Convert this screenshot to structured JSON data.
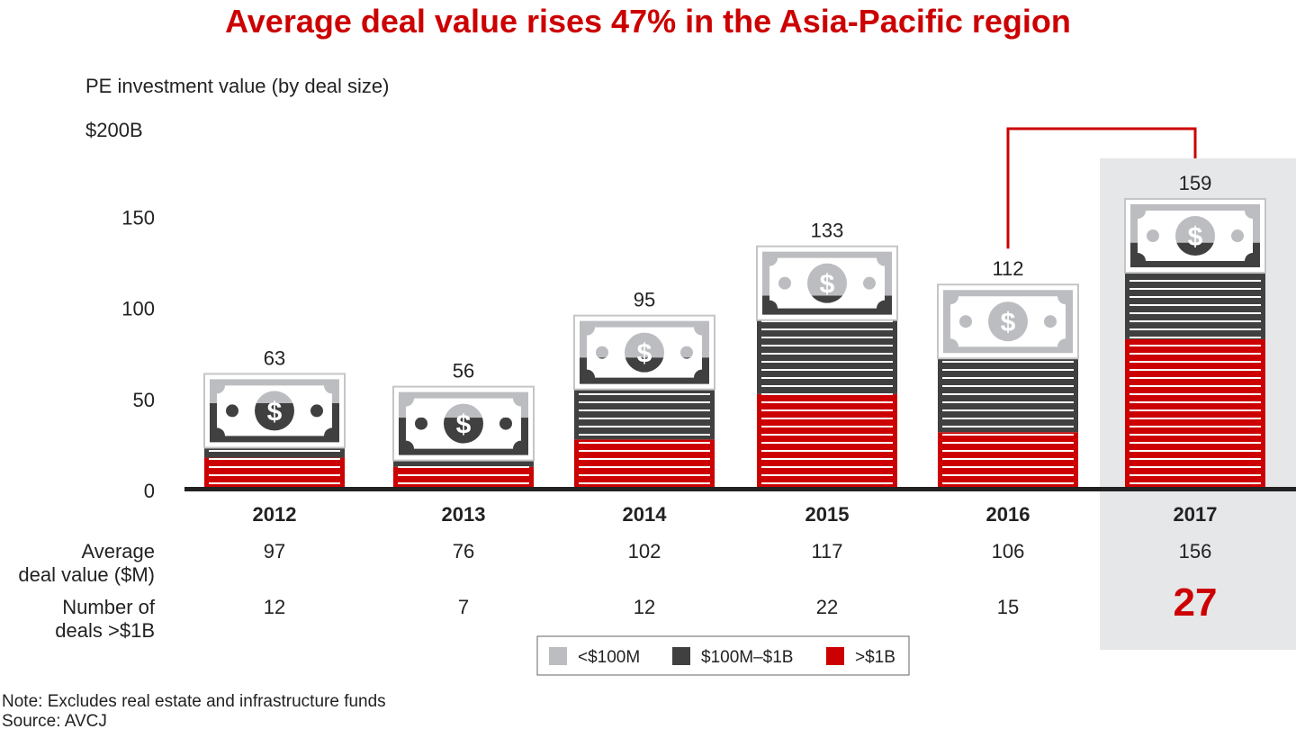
{
  "chart_data": {
    "type": "bar",
    "stacked": true,
    "title": "Average deal value rises 47% in the Asia-Pacific region",
    "ylabel": "PE investment value (by deal size)",
    "ylim": [
      0,
      200
    ],
    "y_ticks": [
      "$200B",
      "150",
      "100",
      "50",
      "0"
    ],
    "y_tick_values": [
      200,
      150,
      100,
      50,
      0
    ],
    "categories": [
      "2012",
      "2013",
      "2014",
      "2015",
      "2016",
      "2017"
    ],
    "highlight_category": "2017",
    "totals": [
      63,
      56,
      95,
      133,
      112,
      159
    ],
    "series": [
      {
        "name": ">$1B",
        "color": "#cc0000",
        "values": [
          17,
          12,
          27,
          52,
          31,
          82
        ]
      },
      {
        "name": "$100M–$1B",
        "color": "#404040",
        "values": [
          30,
          27,
          45,
          54,
          41,
          53
        ]
      },
      {
        "name": "<$100M",
        "color": "#bcbdc0",
        "values": [
          16,
          17,
          23,
          27,
          40,
          24
        ]
      }
    ],
    "legend": [
      "<$100M",
      "$100M–$1B",
      ">$1B"
    ],
    "legend_placement": "bottom",
    "grid": false,
    "rows": [
      {
        "label_lines": [
          "Average",
          "deal value ($M)"
        ],
        "values": [
          "97",
          "76",
          "102",
          "117",
          "106",
          "156"
        ]
      },
      {
        "label_lines": [
          "Number of",
          "deals >$1B"
        ],
        "values": [
          "12",
          "7",
          "12",
          "22",
          "15",
          "27"
        ]
      }
    ],
    "connector": {
      "from": "2016",
      "to": "2017",
      "color": "#cc0000"
    }
  },
  "notes": {
    "note": "Note: Excludes real estate and infrastructure funds",
    "source": "Source: AVCJ"
  },
  "colors": {
    "accent": "#cc0000",
    "highlight_bg": "#e6e7e9",
    "axis": "#222222"
  }
}
